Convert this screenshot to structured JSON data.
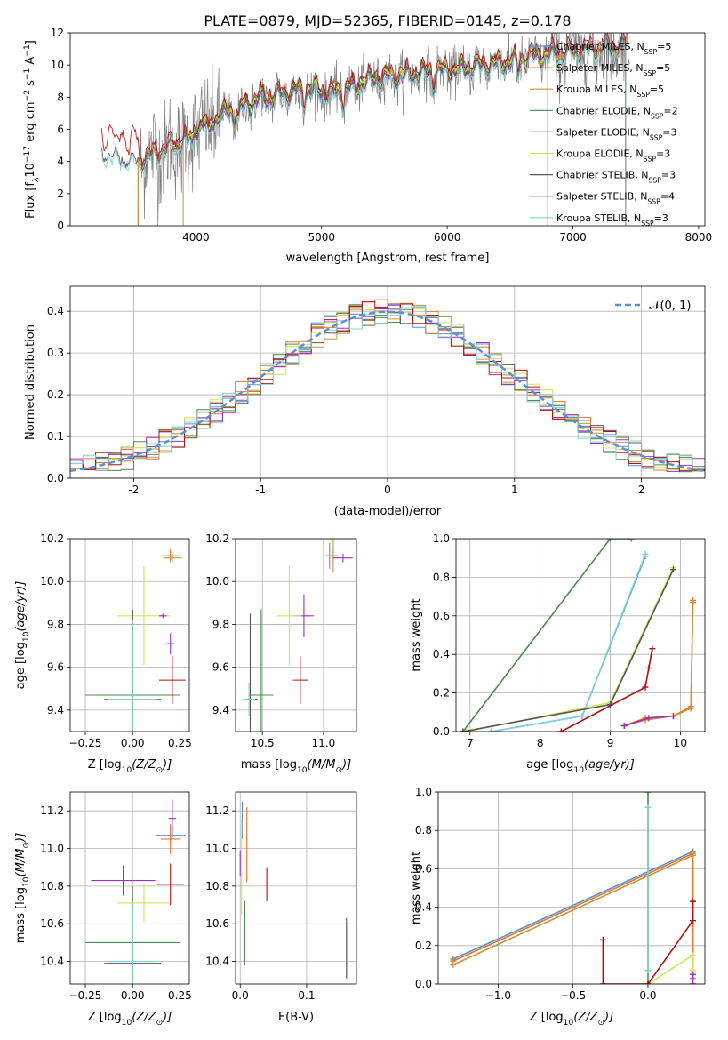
{
  "page_title": "PLATE=0879, MJD=52365, FIBERID=0145, z=0.178",
  "colors": {
    "chabrier_miles": "#5b8fd6",
    "salpeter_miles": "#e8762c",
    "kroupa_miles": "#c9943a",
    "chabrier_elodie": "#4e8a4e",
    "salpeter_elodie": "#9b30c0",
    "kroupa_elodie": "#d4e05a",
    "chabrier_stelib": "#555555",
    "salpeter_stelib": "#b01010",
    "kroupa_stelib": "#80d0d8",
    "data": "#808080",
    "normal": "#5b8fd6"
  },
  "chart_data": [
    {
      "id": "spectrum",
      "type": "line",
      "title": "PLATE=0879, MJD=52365, FIBERID=0145, z=0.178",
      "xlabel": "wavelength [Angstrom, rest frame]",
      "ylabel_parts": [
        "Flux [f",
        "λ",
        "10",
        "−17",
        " erg cm",
        "−2",
        " s",
        "−1",
        " A",
        "−1",
        "]"
      ],
      "xlim": [
        3000,
        8050
      ],
      "ylim": [
        0,
        12
      ],
      "xticks": [
        4000,
        5000,
        6000,
        7000,
        8000
      ],
      "yticks": [
        0,
        2,
        4,
        6,
        8,
        10,
        12
      ],
      "legend_position": "upper-right",
      "legend": [
        {
          "label": "Chabrier MILES, N",
          "sub": "SSP",
          "suffix": "=5",
          "color_key": "chabrier_miles"
        },
        {
          "label": "Salpeter MILES, N",
          "sub": "SSP",
          "suffix": "=5",
          "color_key": "salpeter_miles"
        },
        {
          "label": "Kroupa MILES, N",
          "sub": "SSP",
          "suffix": "=5",
          "color_key": "kroupa_miles"
        },
        {
          "label": "Chabrier ELODIE, N",
          "sub": "SSP",
          "suffix": "=2",
          "color_key": "chabrier_elodie"
        },
        {
          "label": "Salpeter ELODIE, N",
          "sub": "SSP",
          "suffix": "=3",
          "color_key": "salpeter_elodie"
        },
        {
          "label": "Kroupa ELODIE, N",
          "sub": "SSP",
          "suffix": "=3",
          "color_key": "kroupa_elodie"
        },
        {
          "label": "Chabrier STELIB, N",
          "sub": "SSP",
          "suffix": "=3",
          "color_key": "chabrier_stelib"
        },
        {
          "label": "Salpeter STELIB, N",
          "sub": "SSP",
          "suffix": "=4",
          "color_key": "salpeter_stelib"
        },
        {
          "label": "Kroupa STELIB, N",
          "sub": "SSP",
          "suffix": "=3",
          "color_key": "kroupa_stelib"
        }
      ],
      "continuum": {
        "x": [
          3250,
          3400,
          3550,
          3700,
          3850,
          3950,
          4100,
          4300,
          4500,
          4700,
          4900,
          5100,
          5300,
          5500,
          5700,
          5900,
          6100,
          6300,
          6500,
          6700,
          6900,
          7100,
          7300,
          7450
        ],
        "y": [
          4.6,
          4.2,
          4.0,
          4.6,
          5.0,
          5.8,
          6.4,
          7.2,
          7.8,
          8.2,
          8.5,
          8.2,
          8.9,
          9.2,
          9.4,
          9.6,
          9.7,
          10.0,
          10.2,
          10.5,
          10.7,
          10.9,
          11.1,
          11.2
        ]
      },
      "model_series": [
        {
          "color_key": "chabrier_miles",
          "xrange": [
            3540,
            7420
          ],
          "offset": 0.15
        },
        {
          "color_key": "salpeter_miles",
          "xrange": [
            3540,
            7420
          ],
          "offset": -0.1
        },
        {
          "color_key": "kroupa_miles",
          "xrange": [
            3540,
            7420
          ],
          "offset": 0.05
        },
        {
          "color_key": "chabrier_elodie",
          "xrange": [
            3900,
            6800
          ],
          "offset": 0.2
        },
        {
          "color_key": "salpeter_elodie",
          "xrange": [
            3900,
            6800
          ],
          "offset": -0.15
        },
        {
          "color_key": "kroupa_elodie",
          "xrange": [
            3900,
            6800
          ],
          "offset": 0.1
        },
        {
          "color_key": "chabrier_stelib",
          "xrange": [
            3250,
            7420
          ],
          "offset": -0.05
        },
        {
          "color_key": "salpeter_stelib",
          "xrange": [
            3250,
            7420
          ],
          "offset": 0.35
        },
        {
          "color_key": "kroupa_stelib",
          "xrange": [
            3250,
            7420
          ],
          "offset": -0.3
        }
      ],
      "observed": {
        "color_key": "data",
        "xrange": [
          3550,
          7450
        ],
        "noise": 1.6
      }
    },
    {
      "id": "residuals",
      "type": "step",
      "xlabel": "(data-model)/error",
      "ylabel": "Normed distribution",
      "xlim": [
        -2.5,
        2.5
      ],
      "ylim": [
        0,
        0.46
      ],
      "xticks": [
        -2,
        -1,
        0,
        1,
        2
      ],
      "yticks": [
        0.0,
        0.1,
        0.2,
        0.3,
        0.4
      ],
      "legend": {
        "label": "𝒩(0, 1)",
        "style": "dashed",
        "color_key": "normal"
      },
      "bin_width": 0.1,
      "series_color_keys": [
        "chabrier_miles",
        "salpeter_miles",
        "kroupa_miles",
        "chabrier_elodie",
        "salpeter_elodie",
        "kroupa_elodie",
        "chabrier_stelib",
        "salpeter_stelib",
        "kroupa_stelib"
      ]
    },
    {
      "id": "z_age",
      "type": "errorbar",
      "xlabel_parts": [
        "Z [log",
        "10",
        "(Z/Z",
        "⊙",
        ")]"
      ],
      "ylabel_parts": [
        "age  [log",
        "10",
        "(age/yr)]"
      ],
      "xlim": [
        -0.33,
        0.3
      ],
      "ylim": [
        9.3,
        10.2
      ],
      "xticks": [
        -0.25,
        0.0,
        0.25
      ],
      "xticklabels": [
        "−0.25",
        "0.00",
        "0.25"
      ],
      "yticks": [
        9.4,
        9.6,
        9.8,
        10.0,
        10.2
      ],
      "points": [
        {
          "x": 0.2,
          "y": 10.12,
          "xerr": 0.05,
          "yerr": 0.02,
          "color_key": "chabrier_miles"
        },
        {
          "x": 0.2,
          "y": 10.12,
          "xerr": 0.04,
          "yerr": 0.03,
          "color_key": "salpeter_miles"
        },
        {
          "x": 0.21,
          "y": 10.11,
          "xerr": 0.05,
          "yerr": 0.02,
          "color_key": "kroupa_miles"
        },
        {
          "x": 0.0,
          "y": 9.47,
          "xerr": 0.25,
          "yerr": 0.4,
          "color_key": "chabrier_elodie"
        },
        {
          "x": 0.2,
          "y": 9.71,
          "xerr": 0.02,
          "yerr": 0.05,
          "color_key": "salpeter_elodie"
        },
        {
          "x": 0.06,
          "y": 9.84,
          "xerr": 0.14,
          "yerr": 0.23,
          "color_key": "kroupa_elodie"
        },
        {
          "x": 0.0,
          "y": 9.45,
          "xerr": 0.15,
          "yerr": 0.42,
          "color_key": "chabrier_stelib"
        },
        {
          "x": 0.21,
          "y": 9.54,
          "xerr": 0.07,
          "yerr": 0.11,
          "color_key": "salpeter_stelib"
        },
        {
          "x": 0.0,
          "y": 9.45,
          "xerr": 0.13,
          "yerr": 0.37,
          "color_key": "kroupa_stelib"
        },
        {
          "x": 0.16,
          "y": 9.84,
          "xerr": 0.02,
          "yerr": 0.01,
          "color_key": "salpeter_elodie"
        }
      ]
    },
    {
      "id": "mass_age",
      "type": "errorbar",
      "xlabel_parts": [
        "mass [log",
        "10",
        "(M/M",
        "⊙",
        ")]"
      ],
      "xlim": [
        10.28,
        11.27
      ],
      "ylim": [
        9.3,
        10.2
      ],
      "xticks": [
        10.5,
        11.0
      ],
      "xticklabels": [
        "10.5",
        "11.0"
      ],
      "yticks": [
        9.4,
        9.6,
        9.8,
        10.0,
        10.2
      ],
      "points": [
        {
          "x": 11.05,
          "y": 10.12,
          "xerr": 0.04,
          "yerr": 0.06,
          "color_key": "chabrier_miles"
        },
        {
          "x": 11.07,
          "y": 10.12,
          "xerr": 0.05,
          "yerr": 0.03,
          "color_key": "salpeter_miles"
        },
        {
          "x": 11.08,
          "y": 10.12,
          "xerr": 0.03,
          "yerr": 0.08,
          "color_key": "kroupa_miles"
        },
        {
          "x": 10.49,
          "y": 9.47,
          "xerr": 0.1,
          "yerr": 0.4,
          "color_key": "chabrier_elodie"
        },
        {
          "x": 10.84,
          "y": 9.84,
          "xerr": 0.08,
          "yerr": 0.1,
          "color_key": "salpeter_elodie"
        },
        {
          "x": 10.72,
          "y": 9.84,
          "xerr": 0.1,
          "yerr": 0.23,
          "color_key": "kroupa_elodie"
        },
        {
          "x": 10.4,
          "y": 9.45,
          "xerr": 0.06,
          "yerr": 0.4,
          "color_key": "chabrier_stelib"
        },
        {
          "x": 10.81,
          "y": 9.54,
          "xerr": 0.06,
          "yerr": 0.11,
          "color_key": "salpeter_stelib"
        },
        {
          "x": 10.39,
          "y": 9.45,
          "xerr": 0.05,
          "yerr": 0.08,
          "color_key": "kroupa_stelib"
        },
        {
          "x": 11.16,
          "y": 10.11,
          "xerr": 0.08,
          "yerr": 0.02,
          "color_key": "salpeter_elodie"
        }
      ]
    },
    {
      "id": "age_weight",
      "type": "line",
      "xlabel_parts": [
        "age  [log",
        "10",
        "(age/yr)]"
      ],
      "ylabel": "mass weight",
      "xlim": [
        6.8,
        10.35
      ],
      "ylim": [
        0,
        1.0
      ],
      "xticks": [
        7,
        8,
        9,
        10
      ],
      "yticks": [
        0.0,
        0.2,
        0.4,
        0.6,
        0.8,
        1.0
      ],
      "series": [
        {
          "color_key": "chabrier_elodie",
          "x": [
            6.9,
            9.0,
            9.3
          ],
          "y": [
            0.0,
            1.0,
            1.0
          ]
        },
        {
          "color_key": "chabrier_miles",
          "x": [
            7.3,
            8.6,
            9.5
          ],
          "y": [
            0.0,
            0.08,
            0.91
          ]
        },
        {
          "color_key": "kroupa_stelib",
          "x": [
            7.3,
            8.6,
            9.5
          ],
          "y": [
            0.0,
            0.08,
            0.92
          ]
        },
        {
          "color_key": "kroupa_elodie",
          "x": [
            6.95,
            9.0,
            9.9
          ],
          "y": [
            0.0,
            0.15,
            0.85
          ]
        },
        {
          "color_key": "chabrier_stelib",
          "x": [
            6.9,
            9.0,
            9.9
          ],
          "y": [
            0.0,
            0.14,
            0.84
          ]
        },
        {
          "color_key": "salpeter_stelib",
          "x": [
            8.3,
            9.5,
            9.55,
            9.6
          ],
          "y": [
            0.0,
            0.23,
            0.33,
            0.43
          ]
        },
        {
          "color_key": "salpeter_miles",
          "x": [
            9.2,
            9.5,
            9.9,
            10.15,
            10.18
          ],
          "y": [
            0.03,
            0.07,
            0.08,
            0.13,
            0.68
          ]
        },
        {
          "color_key": "kroupa_miles",
          "x": [
            9.2,
            9.5,
            9.9,
            10.15,
            10.18
          ],
          "y": [
            0.03,
            0.06,
            0.08,
            0.12,
            0.67
          ]
        },
        {
          "color_key": "salpeter_elodie",
          "x": [
            9.2,
            9.55,
            9.9
          ],
          "y": [
            0.03,
            0.07,
            0.08
          ]
        }
      ]
    },
    {
      "id": "z_mass",
      "type": "errorbar",
      "xlabel_parts": [
        "Z [log",
        "10",
        "(Z/Z",
        "⊙",
        ")]"
      ],
      "ylabel_parts": [
        "mass [log",
        "10",
        "(M/M",
        "⊙",
        ")]"
      ],
      "xlim": [
        -0.33,
        0.3
      ],
      "ylim": [
        10.28,
        11.3
      ],
      "xticks": [
        -0.25,
        0.0,
        0.25
      ],
      "xticklabels": [
        "−0.25",
        "0.00",
        "0.25"
      ],
      "yticks": [
        10.4,
        10.6,
        10.8,
        11.0,
        11.2
      ],
      "points": [
        {
          "x": 0.2,
          "y": 11.07,
          "xerr": 0.08,
          "yerr": 0.05,
          "color_key": "chabrier_miles"
        },
        {
          "x": 0.2,
          "y": 11.05,
          "xerr": 0.05,
          "yerr": 0.08,
          "color_key": "salpeter_miles"
        },
        {
          "x": 0.21,
          "y": 11.16,
          "xerr": 0.02,
          "yerr": 0.1,
          "color_key": "salpeter_elodie"
        },
        {
          "x": 0.0,
          "y": 10.5,
          "xerr": 0.25,
          "yerr": 0.3,
          "color_key": "chabrier_elodie"
        },
        {
          "x": -0.05,
          "y": 10.83,
          "xerr": 0.17,
          "yerr": 0.08,
          "color_key": "salpeter_elodie"
        },
        {
          "x": 0.06,
          "y": 10.71,
          "xerr": 0.14,
          "yerr": 0.1,
          "color_key": "kroupa_elodie"
        },
        {
          "x": 0.0,
          "y": 10.39,
          "xerr": 0.15,
          "yerr": 0.1,
          "color_key": "chabrier_stelib"
        },
        {
          "x": 0.2,
          "y": 10.81,
          "xerr": 0.07,
          "yerr": 0.11,
          "color_key": "salpeter_stelib"
        },
        {
          "x": 0.0,
          "y": 10.4,
          "xerr": 0.13,
          "yerr": 0.3,
          "color_key": "kroupa_stelib"
        }
      ]
    },
    {
      "id": "ebv_mass",
      "type": "errorbar",
      "xlabel": "E(B-V)",
      "xlim": [
        -0.007,
        0.175
      ],
      "ylim": [
        10.28,
        11.3
      ],
      "xticks": [
        0.0,
        0.1
      ],
      "xticklabels": [
        "0.0",
        "0.1"
      ],
      "yticks": [
        10.4,
        10.6,
        10.8,
        11.0,
        11.2
      ],
      "points": [
        {
          "x": 0.003,
          "y": 11.15,
          "xerr": 0,
          "yerr": 0.1,
          "color_key": "chabrier_miles"
        },
        {
          "x": 0.01,
          "y": 11.02,
          "xerr": 0,
          "yerr": 0.2,
          "color_key": "salpeter_miles"
        },
        {
          "x": 0.002,
          "y": 10.9,
          "xerr": 0,
          "yerr": 0.25,
          "color_key": "kroupa_elodie"
        },
        {
          "x": 0.0,
          "y": 10.92,
          "xerr": 0,
          "yerr": 0.07,
          "color_key": "salpeter_elodie"
        },
        {
          "x": 0.007,
          "y": 10.55,
          "xerr": 0,
          "yerr": 0.17,
          "color_key": "chabrier_elodie"
        },
        {
          "x": 0.04,
          "y": 10.81,
          "xerr": 0,
          "yerr": 0.09,
          "color_key": "salpeter_stelib"
        },
        {
          "x": 0.16,
          "y": 10.47,
          "xerr": 0,
          "yerr": 0.16,
          "color_key": "chabrier_stelib"
        },
        {
          "x": 0.162,
          "y": 10.45,
          "xerr": 0,
          "yerr": 0.15,
          "color_key": "kroupa_stelib"
        }
      ]
    },
    {
      "id": "z_weight",
      "type": "line",
      "xlabel_parts": [
        "Z [log",
        "10",
        "(Z/Z",
        "⊙",
        ")]"
      ],
      "ylabel": "mass weight",
      "xlim": [
        -1.4,
        0.38
      ],
      "ylim": [
        0,
        1.0
      ],
      "xticks": [
        -1.0,
        -0.5,
        0.0
      ],
      "xticklabels": [
        "−1.0",
        "−0.5",
        "0.0"
      ],
      "yticks": [
        0.0,
        0.2,
        0.4,
        0.6,
        0.8,
        1.0
      ],
      "series": [
        {
          "color_key": "chabrier_miles",
          "x": [
            -1.3,
            0.3,
            0.3
          ],
          "y": [
            0.13,
            0.69,
            0.05
          ]
        },
        {
          "color_key": "salpeter_miles",
          "x": [
            -1.3,
            0.3,
            0.3
          ],
          "y": [
            0.12,
            0.68,
            0.03
          ]
        },
        {
          "color_key": "kroupa_miles",
          "x": [
            -1.3,
            0.3
          ],
          "y": [
            0.1,
            0.67
          ]
        },
        {
          "color_key": "chabrier_elodie",
          "x": [
            0.0,
            0.0
          ],
          "y": [
            0.0,
            1.0
          ]
        },
        {
          "color_key": "kroupa_stelib",
          "x": [
            0.0,
            0.0
          ],
          "y": [
            0.07,
            0.92
          ]
        },
        {
          "color_key": "kroupa_elodie",
          "x": [
            0.0,
            0.3,
            0.3
          ],
          "y": [
            0.0,
            0.15,
            0.07
          ]
        },
        {
          "color_key": "salpeter_stelib",
          "x": [
            -0.3,
            -0.3,
            0.0,
            0.3,
            0.3
          ],
          "y": [
            0.23,
            0.0,
            0.0,
            0.33,
            0.43
          ]
        },
        {
          "color_key": "salpeter_elodie",
          "x": [
            0.3,
            0.3
          ],
          "y": [
            0.0,
            0.05
          ]
        }
      ]
    }
  ]
}
